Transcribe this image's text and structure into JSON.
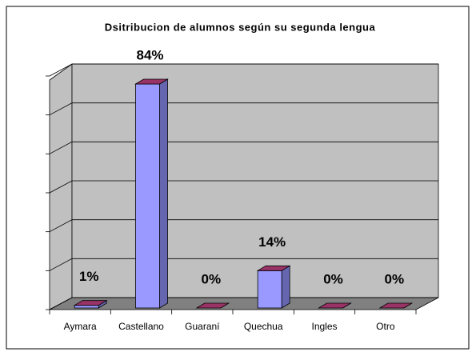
{
  "chart_data": {
    "type": "bar3d",
    "title": "Dsitribucion de alumnos según su segunda lengua",
    "categories": [
      "Aymara",
      "Castellano",
      "Guaraní",
      "Quechua",
      "Ingles",
      "Otro"
    ],
    "values": [
      1,
      84,
      0,
      14,
      0,
      0
    ],
    "value_labels": [
      "1%",
      "84%",
      "0%",
      "14%",
      "0%",
      "0%"
    ],
    "color": "#9999ff",
    "top_color": "#993366",
    "ylim": [
      0,
      90
    ],
    "yticks": [
      0,
      15,
      30,
      45,
      60,
      75,
      90
    ],
    "grid": true
  }
}
